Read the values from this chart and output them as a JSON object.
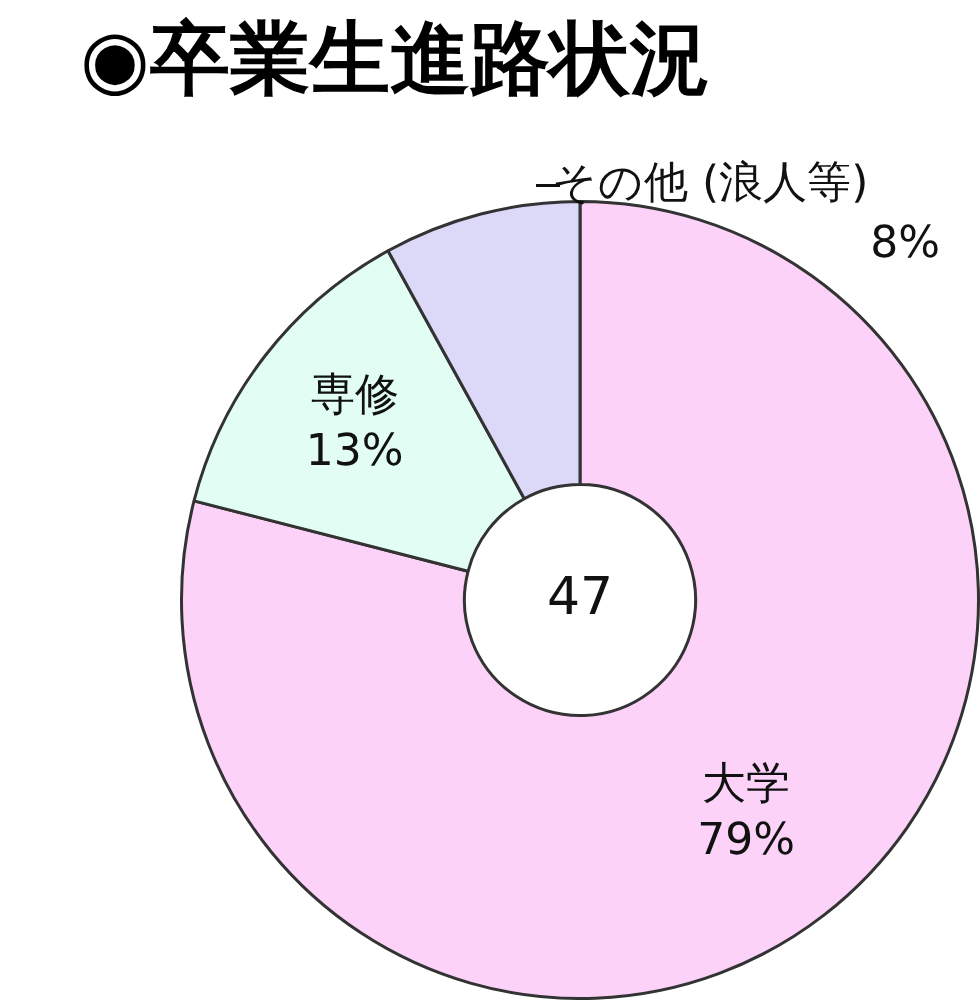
{
  "chart_data": {
    "type": "donut",
    "title": "◉卒業生進路状況",
    "categories": [
      "大学",
      "専修",
      "その他 (浪人等)"
    ],
    "values": [
      79,
      13,
      8
    ],
    "value_labels": [
      "79%",
      "13%",
      "8%"
    ],
    "colors": [
      "#fcd2f8",
      "#e2fdf4",
      "#dcd8f8"
    ],
    "annotations": [
      "47"
    ],
    "legend": false
  }
}
